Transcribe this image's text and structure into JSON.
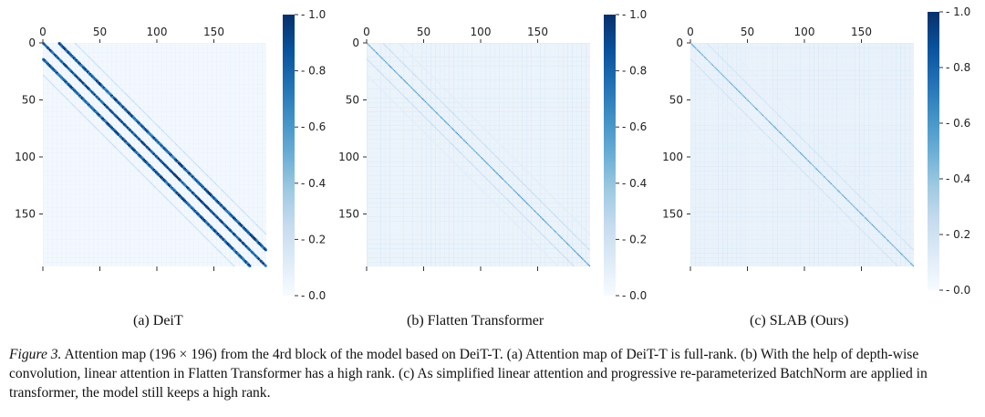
{
  "chart_data": [
    {
      "type": "heatmap",
      "title": "",
      "subcaption": "(a) DeiT",
      "matrix_size": [
        196,
        196
      ],
      "xticks": [
        0,
        50,
        100,
        150
      ],
      "yticks": [
        0,
        50,
        100,
        150
      ],
      "xlim": [
        0,
        196
      ],
      "ylim": [
        0,
        196
      ],
      "colorbar": {
        "min": 0.0,
        "max": 1.0,
        "ticks": [
          "0.0",
          "0.2",
          "0.4",
          "0.6",
          "0.8",
          "1.0"
        ],
        "colormap": "Blues"
      },
      "pattern": {
        "main_diagonal_strength": 0.95,
        "off_diagonal_bands": [
          {
            "offset": 14,
            "strength": 0.9
          },
          {
            "offset": -14,
            "strength": 0.9
          },
          {
            "offset": 28,
            "strength": 0.25
          },
          {
            "offset": -28,
            "strength": 0.25
          }
        ],
        "background": 0.02
      }
    },
    {
      "type": "heatmap",
      "title": "",
      "subcaption": "(b) Flatten Transformer",
      "matrix_size": [
        196,
        196
      ],
      "xticks": [
        0,
        50,
        100,
        150
      ],
      "yticks": [
        0,
        50,
        100,
        150
      ],
      "xlim": [
        0,
        196
      ],
      "ylim": [
        0,
        196
      ],
      "colorbar": {
        "min": 0.0,
        "max": 1.0,
        "ticks": [
          "0.0",
          "0.2",
          "0.4",
          "0.6",
          "0.8",
          "1.0"
        ],
        "colormap": "Blues"
      },
      "pattern": {
        "main_diagonal_strength": 0.6,
        "off_diagonal_bands": [
          {
            "offset": 14,
            "strength": 0.25
          },
          {
            "offset": -14,
            "strength": 0.25
          },
          {
            "offset": 28,
            "strength": 0.12
          },
          {
            "offset": -28,
            "strength": 0.12
          },
          {
            "offset": 42,
            "strength": 0.08
          },
          {
            "offset": -42,
            "strength": 0.08
          }
        ],
        "background": 0.06
      }
    },
    {
      "type": "heatmap",
      "title": "",
      "subcaption": "(c) SLAB (Ours)",
      "matrix_size": [
        196,
        196
      ],
      "xticks": [
        0,
        50,
        100,
        150
      ],
      "yticks": [
        0,
        50,
        100,
        150
      ],
      "xlim": [
        0,
        196
      ],
      "ylim": [
        0,
        196
      ],
      "colorbar": {
        "min": 0.0,
        "max": 1.0,
        "ticks": [
          "0.0",
          "0.2",
          "0.4",
          "0.6",
          "0.8",
          "1.0"
        ],
        "colormap": "Blues"
      },
      "pattern": {
        "main_diagonal_strength": 0.55,
        "off_diagonal_bands": [
          {
            "offset": 14,
            "strength": 0.2
          },
          {
            "offset": -14,
            "strength": 0.2
          },
          {
            "offset": 28,
            "strength": 0.1
          },
          {
            "offset": -28,
            "strength": 0.1
          }
        ],
        "background": 0.07
      }
    }
  ],
  "figure": {
    "label": "Figure 3.",
    "caption_text": " Attention map (196 × 196) from the 4rd block of the model based on DeiT-T. (a) Attention map of DeiT-T is full-rank. (b) With the help of depth-wise convolution, linear attention in Flatten Transformer has a high rank. (c) As simplified linear attention and progressive re-parameterized BatchNorm are applied in transformer, the model still keeps a high rank."
  }
}
